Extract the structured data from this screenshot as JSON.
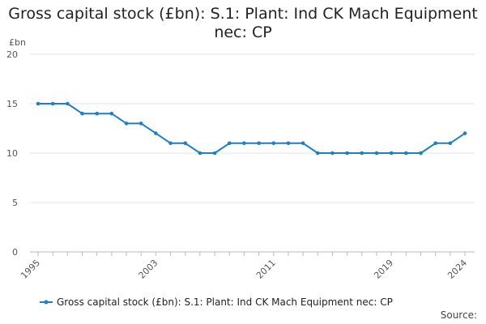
{
  "chart_data": {
    "type": "line",
    "title": "Gross capital stock (£bn): S.1: Plant: Ind CK Mach Equipment nec: CP",
    "ylabel": "£bn",
    "xlabel": "",
    "ylim": [
      0,
      20
    ],
    "xlim": [
      1995,
      2024
    ],
    "y_ticks": [
      "0",
      "5",
      "10",
      "15",
      "20"
    ],
    "x_ticks": [
      "1995",
      "2003",
      "2011",
      "2019",
      "2024"
    ],
    "grid": "horizontal",
    "legend_position": "bottom",
    "series": [
      {
        "name": "Gross capital stock (£bn): S.1: Plant: Ind CK Mach Equipment nec: CP",
        "color": "#1f7fbf",
        "x": [
          1995,
          1996,
          1997,
          1998,
          1999,
          2000,
          2001,
          2002,
          2003,
          2004,
          2005,
          2006,
          2007,
          2008,
          2009,
          2010,
          2011,
          2012,
          2013,
          2014,
          2015,
          2016,
          2017,
          2018,
          2019,
          2020,
          2021,
          2022,
          2023,
          2024
        ],
        "values": [
          15,
          15,
          15,
          14,
          14,
          14,
          13,
          13,
          12,
          11,
          11,
          10,
          10,
          11,
          11,
          11,
          11,
          11,
          11,
          10,
          10,
          10,
          10,
          10,
          10,
          10,
          10,
          11,
          11,
          12
        ]
      }
    ],
    "source_label": "Source:"
  },
  "colors": {
    "series": "#1f7fbf",
    "grid": "#e6e6e6",
    "axis": "#bbbbbb"
  }
}
